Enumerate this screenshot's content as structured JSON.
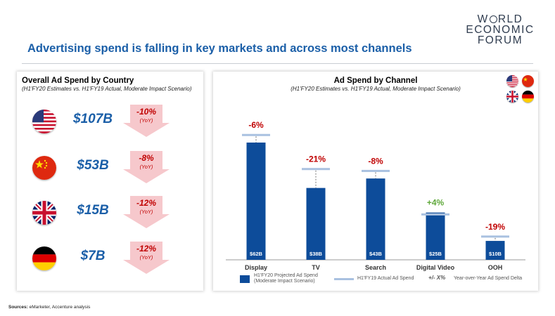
{
  "logo": {
    "line1": "W RLD",
    "line2": "ECONOMIC",
    "line3": "FORUM"
  },
  "title": "Advertising spend is falling in key markets and across most channels",
  "left_panel": {
    "title": "Overall Ad Spend by Country",
    "subtitle": "(H1'FY20 Estimates vs. H1'FY19 Actual, Moderate Impact Scenario)",
    "countries": [
      {
        "flag": "us-flag-icon",
        "amount": "$107B",
        "delta": "-10%",
        "yoy": "(YoY)"
      },
      {
        "flag": "china-flag-icon",
        "amount": "$53B",
        "delta": "-8%",
        "yoy": "(YoY)"
      },
      {
        "flag": "uk-flag-icon",
        "amount": "$15B",
        "delta": "-12%",
        "yoy": "(YoY)"
      },
      {
        "flag": "germany-flag-icon",
        "amount": "$7B",
        "delta": "-12%",
        "yoy": "(YoY)"
      }
    ]
  },
  "right_panel": {
    "title": "Ad Spend by Channel",
    "subtitle": "(H1'FY20 Estimates vs. H1'FY19 Actual, Moderate Impact Scenario)",
    "flags": [
      "us-flag-icon",
      "china-flag-icon",
      "uk-flag-icon",
      "germany-flag-icon"
    ]
  },
  "chart_data": {
    "type": "bar",
    "categories": [
      "Display",
      "TV",
      "Search",
      "Digital Video",
      "OOH"
    ],
    "series": [
      {
        "name": "H1'FY20 Projected Ad Spend (Moderate Impact Scenario)",
        "values": [
          62,
          38,
          43,
          25,
          10
        ]
      },
      {
        "name": "H1'FY19 Actual Ad Spend",
        "values": [
          66,
          48,
          47,
          24,
          12.3
        ]
      }
    ],
    "value_labels": [
      "$62B",
      "$38B",
      "$43B",
      "$25B",
      "$10B"
    ],
    "deltas": [
      "-6%",
      "-21%",
      "-8%",
      "+4%",
      "-19%"
    ],
    "delta_colors": [
      "#c00000",
      "#c00000",
      "#c00000",
      "#5fa83a",
      "#c00000"
    ],
    "bar_color": "#0d4c9a",
    "actual_line_color": "#a9c1e0",
    "ylim": [
      0,
      75
    ],
    "legend": {
      "projected": "H1'FY20 Projected Ad Spend (Moderate Impact Scenario)",
      "actual": "H1'FY19 Actual Ad Spend",
      "delta_symbol": "+/- X%",
      "delta_text": "Year-over-Year Ad Spend Delta"
    }
  },
  "sources": {
    "label": "Sources:",
    "text": "eMarketer, Accenture analysis"
  },
  "colors": {
    "title_blue": "#1b5fa8",
    "negative_red": "#c00000",
    "arrow_pink": "#f6c8cc"
  }
}
